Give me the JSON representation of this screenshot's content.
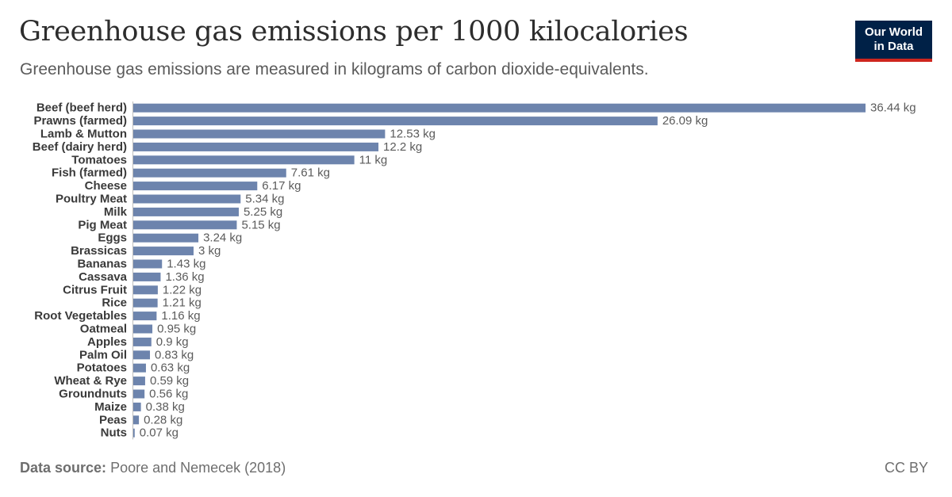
{
  "header": {
    "title": "Greenhouse gas emissions per 1000 kilocalories",
    "subtitle": "Greenhouse gas emissions are measured in kilograms of carbon dioxide-equivalents."
  },
  "logo": {
    "line1": "Our World",
    "line2": "in Data"
  },
  "footer": {
    "source_label": "Data source:",
    "source_text": "Poore and Nemecek (2018)",
    "license": "CC BY"
  },
  "colors": {
    "bar": "#6d84ad",
    "logo_bg": "#002147",
    "logo_accent": "#ce261e"
  },
  "chart_data": {
    "type": "bar",
    "orientation": "horizontal",
    "unit": "kg",
    "categories": [
      "Beef (beef herd)",
      "Prawns (farmed)",
      "Lamb & Mutton",
      "Beef (dairy herd)",
      "Tomatoes",
      "Fish (farmed)",
      "Cheese",
      "Poultry Meat",
      "Milk",
      "Pig Meat",
      "Eggs",
      "Brassicas",
      "Bananas",
      "Cassava",
      "Citrus Fruit",
      "Rice",
      "Root Vegetables",
      "Oatmeal",
      "Apples",
      "Palm Oil",
      "Potatoes",
      "Wheat & Rye",
      "Groundnuts",
      "Maize",
      "Peas",
      "Nuts"
    ],
    "values": [
      36.44,
      26.09,
      12.53,
      12.2,
      11,
      7.61,
      6.17,
      5.34,
      5.25,
      5.15,
      3.24,
      3,
      1.43,
      1.36,
      1.22,
      1.21,
      1.16,
      0.95,
      0.9,
      0.83,
      0.63,
      0.59,
      0.56,
      0.38,
      0.28,
      0.07
    ],
    "value_labels": [
      "36.44 kg",
      "26.09 kg",
      "12.53 kg",
      "12.2 kg",
      "11 kg",
      "7.61 kg",
      "6.17 kg",
      "5.34 kg",
      "5.25 kg",
      "5.15 kg",
      "3.24 kg",
      "3 kg",
      "1.43 kg",
      "1.36 kg",
      "1.22 kg",
      "1.21 kg",
      "1.16 kg",
      "0.95 kg",
      "0.9 kg",
      "0.83 kg",
      "0.63 kg",
      "0.59 kg",
      "0.56 kg",
      "0.38 kg",
      "0.28 kg",
      "0.07 kg"
    ]
  }
}
